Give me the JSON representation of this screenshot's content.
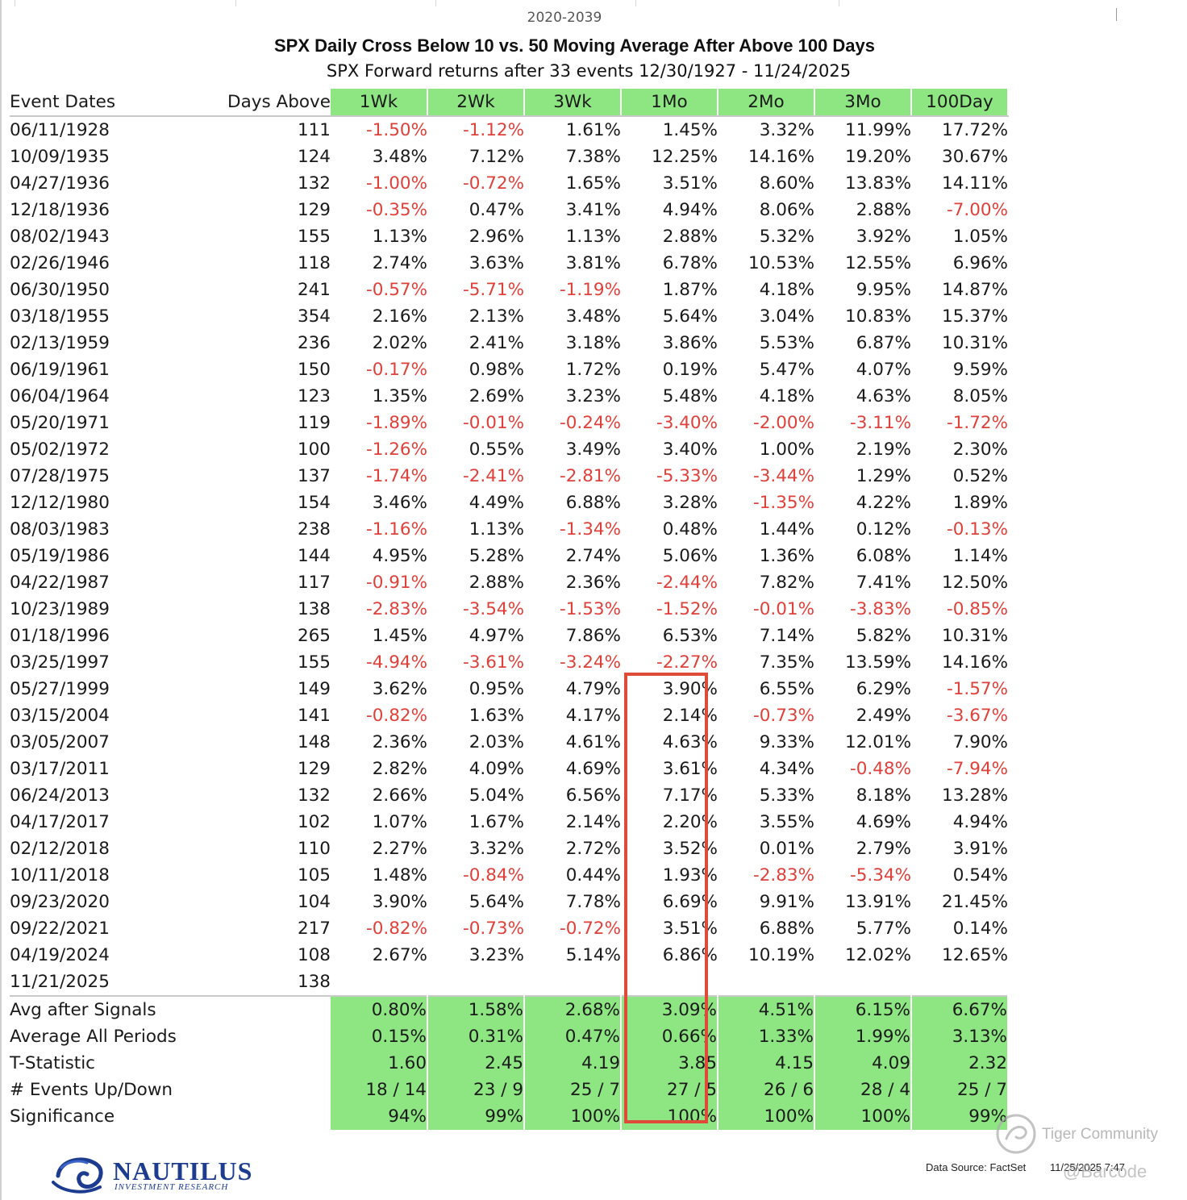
{
  "page_label": "2020-2039",
  "title": "SPX Daily Cross Below 10 vs. 50  Moving Average After Above 100 Days",
  "subtitle": "SPX Forward returns after 33 events 12/30/1927 - 11/24/2025",
  "colors": {
    "header_green": "#8ee683",
    "negative": "#e0403a",
    "highlight": "#e04a38",
    "logo_blue": "#1d3c8f"
  },
  "table": {
    "headers": [
      "Event Dates",
      "Days Above",
      "1Wk",
      "2Wk",
      "3Wk",
      "1Mo",
      "2Mo",
      "3Mo",
      "100Day"
    ],
    "rows": [
      [
        "06/11/1928",
        "111",
        "-1.50%",
        "-1.12%",
        "1.61%",
        "1.45%",
        "3.32%",
        "11.99%",
        "17.72%"
      ],
      [
        "10/09/1935",
        "124",
        "3.48%",
        "7.12%",
        "7.38%",
        "12.25%",
        "14.16%",
        "19.20%",
        "30.67%"
      ],
      [
        "04/27/1936",
        "132",
        "-1.00%",
        "-0.72%",
        "1.65%",
        "3.51%",
        "8.60%",
        "13.83%",
        "14.11%"
      ],
      [
        "12/18/1936",
        "129",
        "-0.35%",
        "0.47%",
        "3.41%",
        "4.94%",
        "8.06%",
        "2.88%",
        "-7.00%"
      ],
      [
        "08/02/1943",
        "155",
        "1.13%",
        "2.96%",
        "1.13%",
        "2.88%",
        "5.32%",
        "3.92%",
        "1.05%"
      ],
      [
        "02/26/1946",
        "118",
        "2.74%",
        "3.63%",
        "3.81%",
        "6.78%",
        "10.53%",
        "12.55%",
        "6.96%"
      ],
      [
        "06/30/1950",
        "241",
        "-0.57%",
        "-5.71%",
        "-1.19%",
        "1.87%",
        "4.18%",
        "9.95%",
        "14.87%"
      ],
      [
        "03/18/1955",
        "354",
        "2.16%",
        "2.13%",
        "3.48%",
        "5.64%",
        "3.04%",
        "10.83%",
        "15.37%"
      ],
      [
        "02/13/1959",
        "236",
        "2.02%",
        "2.41%",
        "3.18%",
        "3.86%",
        "5.53%",
        "6.87%",
        "10.31%"
      ],
      [
        "06/19/1961",
        "150",
        "-0.17%",
        "0.98%",
        "1.72%",
        "0.19%",
        "5.47%",
        "4.07%",
        "9.59%"
      ],
      [
        "06/04/1964",
        "123",
        "1.35%",
        "2.69%",
        "3.23%",
        "5.48%",
        "4.18%",
        "4.63%",
        "8.05%"
      ],
      [
        "05/20/1971",
        "119",
        "-1.89%",
        "-0.01%",
        "-0.24%",
        "-3.40%",
        "-2.00%",
        "-3.11%",
        "-1.72%"
      ],
      [
        "05/02/1972",
        "100",
        "-1.26%",
        "0.55%",
        "3.49%",
        "3.40%",
        "1.00%",
        "2.19%",
        "2.30%"
      ],
      [
        "07/28/1975",
        "137",
        "-1.74%",
        "-2.41%",
        "-2.81%",
        "-5.33%",
        "-3.44%",
        "1.29%",
        "0.52%"
      ],
      [
        "12/12/1980",
        "154",
        "3.46%",
        "4.49%",
        "6.88%",
        "3.28%",
        "-1.35%",
        "4.22%",
        "1.89%"
      ],
      [
        "08/03/1983",
        "238",
        "-1.16%",
        "1.13%",
        "-1.34%",
        "0.48%",
        "1.44%",
        "0.12%",
        "-0.13%"
      ],
      [
        "05/19/1986",
        "144",
        "4.95%",
        "5.28%",
        "2.74%",
        "5.06%",
        "1.36%",
        "6.08%",
        "1.14%"
      ],
      [
        "04/22/1987",
        "117",
        "-0.91%",
        "2.88%",
        "2.36%",
        "-2.44%",
        "7.82%",
        "7.41%",
        "12.50%"
      ],
      [
        "10/23/1989",
        "138",
        "-2.83%",
        "-3.54%",
        "-1.53%",
        "-1.52%",
        "-0.01%",
        "-3.83%",
        "-0.85%"
      ],
      [
        "01/18/1996",
        "265",
        "1.45%",
        "4.97%",
        "7.86%",
        "6.53%",
        "7.14%",
        "5.82%",
        "10.31%"
      ],
      [
        "03/25/1997",
        "155",
        "-4.94%",
        "-3.61%",
        "-3.24%",
        "-2.27%",
        "7.35%",
        "13.59%",
        "14.16%"
      ],
      [
        "05/27/1999",
        "149",
        "3.62%",
        "0.95%",
        "4.79%",
        "3.90%",
        "6.55%",
        "6.29%",
        "-1.57%"
      ],
      [
        "03/15/2004",
        "141",
        "-0.82%",
        "1.63%",
        "4.17%",
        "2.14%",
        "-0.73%",
        "2.49%",
        "-3.67%"
      ],
      [
        "03/05/2007",
        "148",
        "2.36%",
        "2.03%",
        "4.61%",
        "4.63%",
        "9.33%",
        "12.01%",
        "7.90%"
      ],
      [
        "03/17/2011",
        "129",
        "2.82%",
        "4.09%",
        "4.69%",
        "3.61%",
        "4.34%",
        "-0.48%",
        "-7.94%"
      ],
      [
        "06/24/2013",
        "132",
        "2.66%",
        "5.04%",
        "6.56%",
        "7.17%",
        "5.33%",
        "8.18%",
        "13.28%"
      ],
      [
        "04/17/2017",
        "102",
        "1.07%",
        "1.67%",
        "2.14%",
        "2.20%",
        "3.55%",
        "4.69%",
        "4.94%"
      ],
      [
        "02/12/2018",
        "110",
        "2.27%",
        "3.32%",
        "2.72%",
        "3.52%",
        "0.01%",
        "2.79%",
        "3.91%"
      ],
      [
        "10/11/2018",
        "105",
        "1.48%",
        "-0.84%",
        "0.44%",
        "1.93%",
        "-2.83%",
        "-5.34%",
        "0.54%"
      ],
      [
        "09/23/2020",
        "104",
        "3.90%",
        "5.64%",
        "7.78%",
        "6.69%",
        "9.91%",
        "13.91%",
        "21.45%"
      ],
      [
        "09/22/2021",
        "217",
        "-0.82%",
        "-0.73%",
        "-0.72%",
        "3.51%",
        "6.88%",
        "5.77%",
        "0.14%"
      ],
      [
        "04/19/2024",
        "108",
        "2.67%",
        "3.23%",
        "5.14%",
        "6.86%",
        "10.19%",
        "12.02%",
        "12.65%"
      ],
      [
        "11/21/2025",
        "138",
        "",
        "",
        "",
        "",
        "",
        "",
        ""
      ]
    ],
    "summary": [
      [
        "Avg after Signals",
        "0.80%",
        "1.58%",
        "2.68%",
        "3.09%",
        "4.51%",
        "6.15%",
        "6.67%"
      ],
      [
        "Average All Periods",
        "0.15%",
        "0.31%",
        "0.47%",
        "0.66%",
        "1.33%",
        "1.99%",
        "3.13%"
      ],
      [
        "T-Statistic",
        "1.60",
        "2.45",
        "4.19",
        "3.85",
        "4.15",
        "4.09",
        "2.32"
      ],
      [
        "# Events Up/Down",
        "18 / 14",
        "23 / 9",
        "25 / 7",
        "27 / 5",
        "26 / 6",
        "28 / 4",
        "25 / 7"
      ],
      [
        "Significance",
        "94%",
        "99%",
        "100%",
        "100%",
        "100%",
        "100%",
        "99%"
      ]
    ]
  },
  "footer": {
    "logo_name": "NAUTILUS",
    "logo_sub": "INVESTMENT RESEARCH",
    "data_source": "Data Source: FactSet",
    "timestamp": "11/25/2025 7:47",
    "watermark": "Tiger Community",
    "watermark_handle": "@Barcode"
  }
}
